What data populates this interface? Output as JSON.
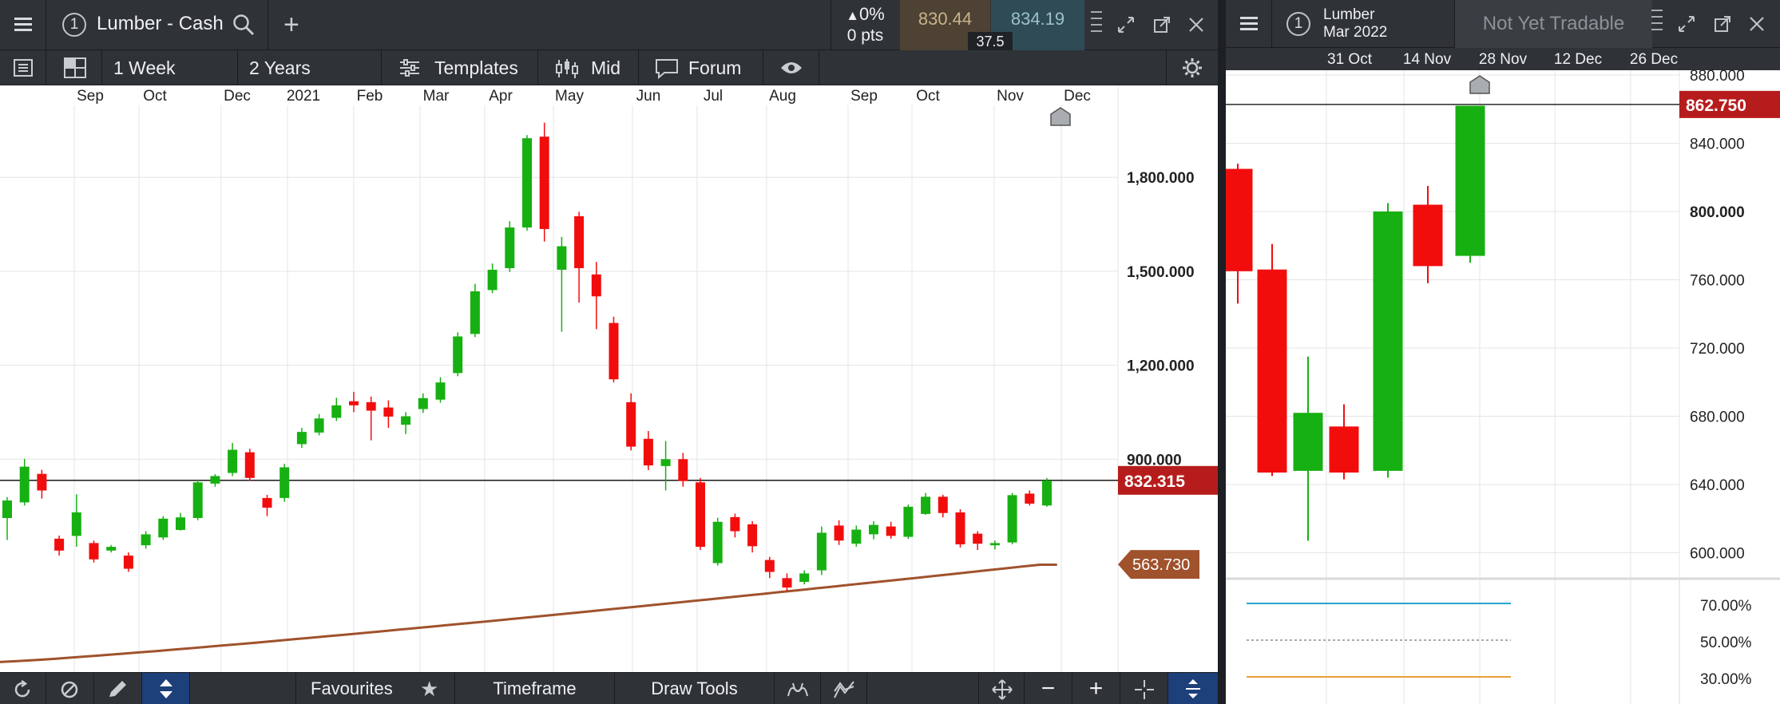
{
  "left_panel": {
    "instrument_number": "1",
    "title": "Lumber - Cash",
    "change_pct": "0%",
    "change_pts": "0 pts",
    "bid": "830.44",
    "ask": "834.19",
    "spread": "37.5",
    "interval": "1 Week",
    "range": "2 Years",
    "templates_label": "Templates",
    "price_type": "Mid",
    "forum_label": "Forum",
    "bottom": {
      "favourites": "Favourites",
      "timeframe": "Timeframe",
      "draw_tools": "Draw Tools"
    },
    "icons": [
      "menu-icon",
      "search-icon",
      "plus-icon",
      "up-triangle-icon",
      "expand-icon",
      "popout-icon",
      "close-icon",
      "list-icon",
      "layout-icon",
      "templates-icon",
      "candles-icon",
      "forum-icon",
      "eye-icon",
      "settings-icon",
      "refresh-icon",
      "ban-icon",
      "pencil-icon",
      "updown-icon",
      "star-icon",
      "wave-icon",
      "trend-icon",
      "move-icon",
      "minus-icon",
      "plus-icon",
      "crosshair-icon",
      "fit-icon"
    ]
  },
  "right_panel": {
    "instrument_number": "1",
    "title_line1": "Lumber",
    "title_line2": "Mar 2022",
    "status": "Not Yet Tradable"
  },
  "chart_data": [
    {
      "type": "candlestick",
      "instrument": "Lumber - Cash",
      "x_ticks": [
        "Sep",
        "Oct",
        "Dec",
        "2021",
        "Feb",
        "Mar",
        "Apr",
        "May",
        "Jun",
        "Jul",
        "Aug",
        "Sep",
        "Oct",
        "Nov",
        "Dec"
      ],
      "y_ticks": [
        "900.000",
        "1,200.000",
        "1,500.000",
        "1,800.000"
      ],
      "ylim": [
        220,
        2030
      ],
      "current_price": "832.315",
      "moving_average_label": "563.730",
      "candles": [
        [
          712,
          768,
          642,
          779
        ],
        [
          762,
          876,
          752,
          901
        ],
        [
          853,
          800,
          774,
          866
        ],
        [
          646,
          608,
          592,
          656
        ],
        [
          655,
          730,
          620,
          788
        ],
        [
          632,
          580,
          570,
          640
        ],
        [
          608,
          620,
          602,
          626
        ],
        [
          592,
          550,
          540,
          602
        ],
        [
          625,
          660,
          614,
          670
        ],
        [
          650,
          710,
          642,
          718
        ],
        [
          674,
          714,
          672,
          728
        ],
        [
          712,
          826,
          705,
          835
        ],
        [
          822,
          846,
          812,
          852
        ],
        [
          856,
          930,
          846,
          952
        ],
        [
          922,
          840,
          830,
          933
        ],
        [
          776,
          745,
          718,
          786
        ],
        [
          776,
          874,
          764,
          885
        ],
        [
          948,
          987,
          936,
          1000
        ],
        [
          985,
          1030,
          976,
          1044
        ],
        [
          1032,
          1072,
          1022,
          1096
        ],
        [
          1085,
          1072,
          1050,
          1115
        ],
        [
          1082,
          1055,
          960,
          1100
        ],
        [
          1065,
          1036,
          1000,
          1088
        ],
        [
          1010,
          1037,
          980,
          1050
        ],
        [
          1060,
          1095,
          1048,
          1110
        ],
        [
          1090,
          1145,
          1080,
          1162
        ],
        [
          1175,
          1292,
          1165,
          1305
        ],
        [
          1300,
          1436,
          1290,
          1460
        ],
        [
          1440,
          1505,
          1430,
          1525
        ],
        [
          1510,
          1640,
          1498,
          1660
        ],
        [
          1640,
          1925,
          1630,
          1935
        ],
        [
          1930,
          1635,
          1595,
          1975
        ],
        [
          1505,
          1580,
          1307,
          1610
        ],
        [
          1676,
          1510,
          1400,
          1690
        ],
        [
          1490,
          1420,
          1315,
          1530
        ],
        [
          1335,
          1155,
          1145,
          1355
        ],
        [
          1082,
          940,
          928,
          1110
        ],
        [
          965,
          880,
          865,
          990
        ],
        [
          878,
          900,
          800,
          958
        ],
        [
          900,
          830,
          812,
          920
        ],
        [
          826,
          620,
          610,
          840
        ],
        [
          568,
          700,
          560,
          713
        ],
        [
          715,
          670,
          650,
          726
        ],
        [
          692,
          622,
          602,
          702
        ],
        [
          578,
          540,
          520,
          588
        ],
        [
          520,
          490,
          478,
          535
        ],
        [
          508,
          535,
          500,
          545
        ],
        [
          545,
          665,
          530,
          685
        ],
        [
          688,
          640,
          626,
          705
        ],
        [
          630,
          675,
          620,
          688
        ],
        [
          660,
          690,
          644,
          702
        ],
        [
          685,
          655,
          646,
          700
        ],
        [
          652,
          748,
          645,
          755
        ],
        [
          725,
          780,
          722,
          792
        ],
        [
          780,
          728,
          714,
          786
        ],
        [
          730,
          628,
          618,
          740
        ],
        [
          662,
          630,
          610,
          670
        ],
        [
          625,
          632,
          612,
          640
        ],
        [
          634,
          785,
          628,
          792
        ],
        [
          790,
          758,
          752,
          800
        ],
        [
          752,
          832,
          748,
          840
        ]
      ]
    },
    {
      "type": "candlestick",
      "instrument": "Lumber Mar 2022",
      "x_ticks": [
        "31 Oct",
        "14 Nov",
        "28 Nov",
        "12 Dec",
        "26 Dec"
      ],
      "y_ticks": [
        "600.000",
        "640.000",
        "680.000",
        "720.000",
        "760.000",
        "800.000",
        "840.000",
        "880.000"
      ],
      "ylim": [
        590,
        883
      ],
      "current_price": "862.750",
      "candles": [
        [
          825,
          765,
          746,
          828
        ],
        [
          766,
          647,
          645,
          781
        ],
        [
          648,
          682,
          607,
          715
        ],
        [
          674,
          647,
          643,
          687
        ],
        [
          648,
          800,
          644,
          805
        ],
        [
          804,
          768,
          758,
          815
        ],
        [
          774,
          862,
          770,
          862
        ]
      ],
      "oscillator_ticks": [
        "30.00%",
        "50.00%",
        "70.00%"
      ]
    }
  ]
}
